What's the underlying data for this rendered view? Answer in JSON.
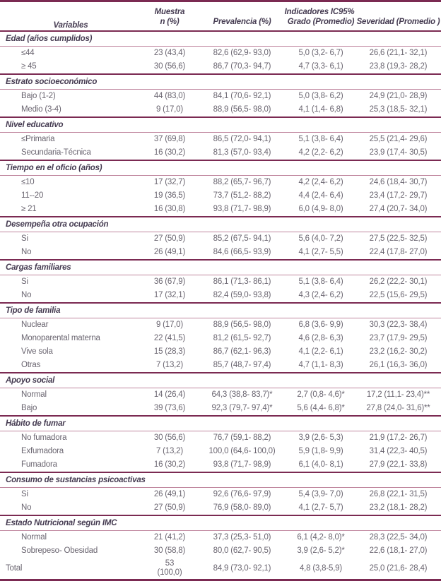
{
  "colors": {
    "rule_dark": "#7b2a52",
    "rule_light": "#c0879f",
    "header_text": "#453b51",
    "body_text": "#6a6570",
    "background": "#ffffff"
  },
  "table": {
    "header": {
      "variables": "Variables",
      "muestra_line1": "Muestra",
      "muestra_line2": "n (%)",
      "indicadores": "Indicadores IC95%",
      "prevalencia": "Prevalencia (%)",
      "grado": "Grado (Promedio)",
      "severidad": "Severidad (Promedio )"
    },
    "sections": [
      {
        "title": "Edad (años cumplidos)",
        "rows": [
          {
            "label": "≤44",
            "muestra": "23 (43,4)",
            "prevalencia": "82,6 (62,9- 93,0)",
            "grado": "5,0 (3,2- 6,7)",
            "severidad": "26,6 (21,1- 32,1)"
          },
          {
            "label": "≥ 45",
            "muestra": "30 (56,6)",
            "prevalencia": "86,7 (70,3- 94,7)",
            "grado": "4,7 (3,3- 6,1)",
            "severidad": "23,8 (19,3- 28,2)"
          }
        ]
      },
      {
        "title": "Estrato socioeconómico",
        "rows": [
          {
            "label": "Bajo (1-2)",
            "muestra": "44 (83,0)",
            "prevalencia": "84,1 (70,6- 92,1)",
            "grado": "5,0 (3,8- 6,2)",
            "severidad": "24,9 (21,0- 28,9)"
          },
          {
            "label": "Medio (3-4)",
            "muestra": "9 (17,0)",
            "prevalencia": "88,9 (56,5- 98,0)",
            "grado": "4,1 (1,4- 6,8)",
            "severidad": "25,3 (18,5- 32,1)"
          }
        ]
      },
      {
        "title": "Nivel educativo",
        "rows": [
          {
            "label": "≤Primaria",
            "muestra": "37 (69,8)",
            "prevalencia": "86,5 (72,0- 94,1)",
            "grado": "5,1 (3,8- 6,4)",
            "severidad": "25,5 (21,4- 29,6)"
          },
          {
            "label": "Secundaria-Técnica",
            "muestra": "16 (30,2)",
            "prevalencia": "81,3 (57,0- 93,4)",
            "grado": "4,2 (2,2- 6,2)",
            "severidad": "23,9 (17,4- 30,5)"
          }
        ]
      },
      {
        "title": "Tiempo en el oficio (años)",
        "rows": [
          {
            "label": "≤10",
            "muestra": "17 (32,7)",
            "prevalencia": "88,2 (65,7- 96,7)",
            "grado": "4,2 (2,4- 6,2)",
            "severidad": "24,6 (18,4- 30,7)"
          },
          {
            "label": "11--20",
            "muestra": "19 (36,5)",
            "prevalencia": "73,7 (51,2- 88,2)",
            "grado": "4,4 (2,4- 6,4)",
            "severidad": "23,4 (17,2- 29,7)"
          },
          {
            "label": "≥ 21",
            "muestra": "16 (30,8)",
            "prevalencia": "93,8 (71,7- 98,9)",
            "grado": "6,0 (4,9- 8,0)",
            "severidad": "27,4 (20,7- 34,0)"
          }
        ]
      },
      {
        "title": "Desempeña otra ocupación",
        "rows": [
          {
            "label": "Si",
            "muestra": "27 (50,9)",
            "prevalencia": "85,2 (67,5- 94,1)",
            "grado": "5,6 (4,0- 7,2)",
            "severidad": "27,5 (22,5- 32,5)"
          },
          {
            "label": "No",
            "muestra": "26 (49,1)",
            "prevalencia": "84,6 (66,5- 93,9)",
            "grado": "4,1 (2,7- 5,5)",
            "severidad": "22,4 (17,8- 27,0)"
          }
        ]
      },
      {
        "title": "Cargas familiares",
        "rows": [
          {
            "label": "Si",
            "muestra": "36 (67,9)",
            "prevalencia": "86,1 (71,3- 86,1)",
            "grado": "5,1 (3,8- 6,4)",
            "severidad": "26,2 (22,2- 30,1)"
          },
          {
            "label": "No",
            "muestra": "17 (32,1)",
            "prevalencia": "82,4 (59,0- 93,8)",
            "grado": "4,3 (2,4- 6,2)",
            "severidad": "22,5 (15,6- 29,5)"
          }
        ]
      },
      {
        "title": "Tipo de familia",
        "rows": [
          {
            "label": "Nuclear",
            "muestra": "9 (17,0)",
            "prevalencia": "88,9 (56,5- 98,0)",
            "grado": "6,8 (3,6- 9,9)",
            "severidad": "30,3 (22,3- 38,4)"
          },
          {
            "label": "Monoparental materna",
            "muestra": "22 (41,5)",
            "prevalencia": "81,2 (61,5- 92,7)",
            "grado": "4,6 (2,8- 6,3)",
            "severidad": "23,7 (17,9- 29,5)"
          },
          {
            "label": "Vive sola",
            "muestra": "15 (28,3)",
            "prevalencia": "86,7 (62,1- 96,3)",
            "grado": "4,1 (2,2- 6,1)",
            "severidad": "23,2 (16,2- 30,2)"
          },
          {
            "label": "Otras",
            "muestra": "7 (13,2)",
            "prevalencia": "85,7 (48,7- 97,4)",
            "grado": "4,7 (1,1- 8,3)",
            "severidad": "26,1 (16,3- 36,0)"
          }
        ]
      },
      {
        "title": "Apoyo social",
        "rows": [
          {
            "label": "Normal",
            "muestra": "14 (26,4)",
            "prevalencia": "64,3 (38,8- 83,7)*",
            "grado": "2,7 (0,8- 4,6)*",
            "severidad": "17,2 (11,1- 23,4)**"
          },
          {
            "label": "Bajo",
            "muestra": "39 (73,6)",
            "prevalencia": "92,3 (79,7- 97,4)*",
            "grado": "5,6 (4,4- 6,8)*",
            "severidad": "27,8 (24,0- 31,6)**"
          }
        ]
      },
      {
        "title": "Hábito de fumar",
        "rows": [
          {
            "label": "No fumadora",
            "muestra": "30 (56,6)",
            "prevalencia": "76,7 (59,1- 88,2)",
            "grado": "3,9 (2,6- 5,3)",
            "severidad": "21,9 (17,2- 26,7)"
          },
          {
            "label": "Exfumadora",
            "muestra": "7 (13,2)",
            "prevalencia": "100,0 (64,6- 100,0)",
            "grado": "5,9 (1,8- 9,9)",
            "severidad": "31,4 (22,3- 40,5)"
          },
          {
            "label": "Fumadora",
            "muestra": "16 (30,2)",
            "prevalencia": "93,8 (71,7- 98,9)",
            "grado": "6,1 (4,0- 8,1)",
            "severidad": "27,9 (22,1- 33,8)"
          }
        ]
      },
      {
        "title": "Consumo de sustancias psicoactivas",
        "rows": [
          {
            "label": "Si",
            "muestra": "26 (49,1)",
            "prevalencia": "92,6 (76,6- 97,9)",
            "grado": "5,4 (3,9- 7,0)",
            "severidad": "26,8 (22,1- 31,5)"
          },
          {
            "label": "No",
            "muestra": "27 (50,9)",
            "prevalencia": "76,9 (58,0- 89,0)",
            "grado": "4,1 (2,7- 5,7)",
            "severidad": "23,2 (18,1- 28,2)"
          }
        ]
      },
      {
        "title": "Estado Nutricional según IMC",
        "rows": [
          {
            "label": "Normal",
            "muestra": "21 (41,2)",
            "prevalencia": "37,3 (25,3- 51,0)",
            "grado": "6,1 (4,2- 8,0)*",
            "severidad": "28,3 (22,5- 34,0)"
          },
          {
            "label": "Sobrepeso- Obesidad",
            "muestra": "30 (58,8)",
            "prevalencia": "80,0 (62,7- 90,5)",
            "grado": "3,9 (2,6- 5,2)*",
            "severidad": "22,6 (18,1- 27,0)"
          }
        ]
      }
    ],
    "total_row": {
      "label": "Total",
      "muestra_line1": "53",
      "muestra_line2": "(100,0)",
      "prevalencia": "84,9 (73,0- 92,1)",
      "grado": "4,8 (3,8-5,9)",
      "severidad": "25,0 (21,6- 28,4)"
    }
  }
}
